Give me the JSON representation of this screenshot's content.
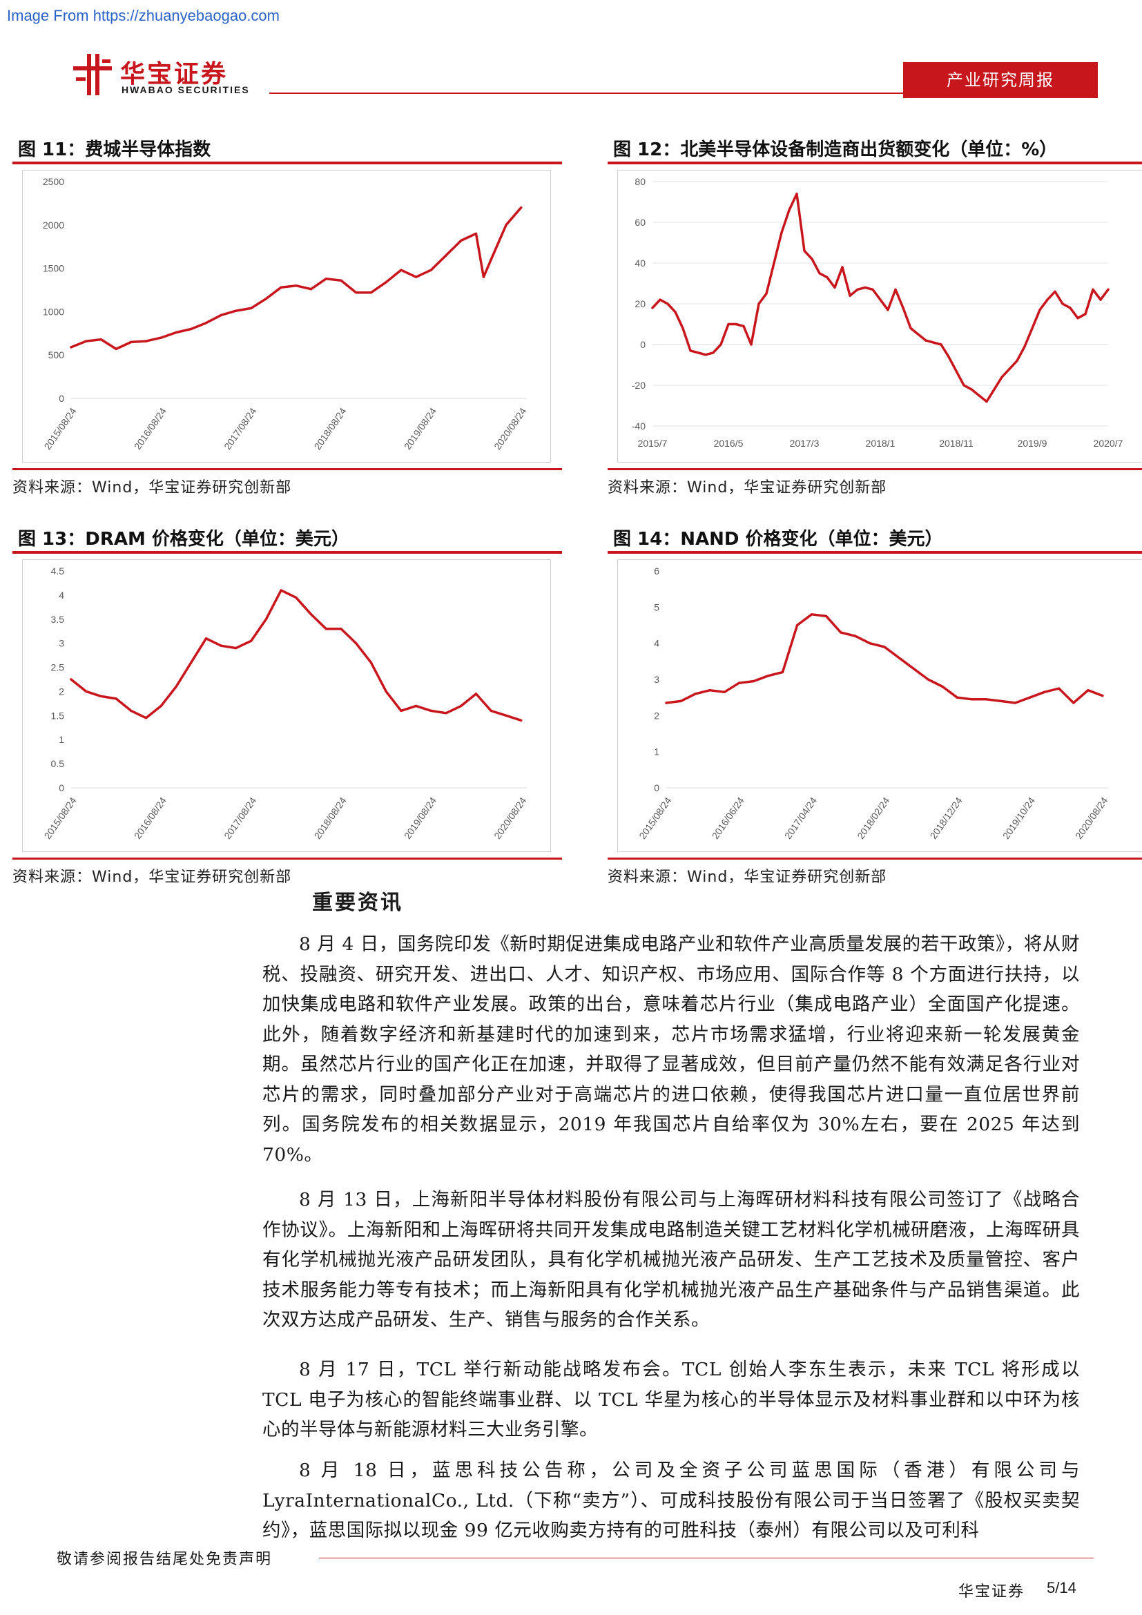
{
  "watermark": "Image From https://zhuanyebaogao.com",
  "header": {
    "logo_cn": "华宝证券",
    "logo_en": "HWABAO SECURITIES",
    "report_type": "产业研究周报",
    "colors": {
      "brand_red": "#c8161d"
    }
  },
  "figures": [
    {
      "title": "图 11：费城半导体指数",
      "source": "资料来源：Wind，华宝证券研究创新部"
    },
    {
      "title": "图 12：北美半导体设备制造商出货额变化（单位：%）",
      "source": "资料来源：Wind，华宝证券研究创新部"
    },
    {
      "title": "图 13：DRAM 价格变化（单位：美元）",
      "source": "资料来源：Wind，华宝证券研究创新部"
    },
    {
      "title": "图 14：NAND 价格变化（单位：美元）",
      "source": "资料来源：Wind，华宝证券研究创新部"
    }
  ],
  "chart_data": [
    {
      "type": "line",
      "title": "图 11：费城半导体指数",
      "color": "#c8161d",
      "x_ticks": [
        "2015/08/24",
        "2016/08/24",
        "2017/08/24",
        "2018/08/24",
        "2019/08/24",
        "2020/08/24"
      ],
      "ylim": [
        0,
        2500
      ],
      "y_ticks": [
        0,
        500,
        1000,
        1500,
        2000,
        2500
      ],
      "x": [
        "2015/08",
        "2015/10",
        "2015/12",
        "2016/02",
        "2016/04",
        "2016/06",
        "2016/08",
        "2016/10",
        "2016/12",
        "2017/02",
        "2017/04",
        "2017/06",
        "2017/08",
        "2017/10",
        "2017/12",
        "2018/02",
        "2018/04",
        "2018/06",
        "2018/08",
        "2018/10",
        "2018/12",
        "2019/02",
        "2019/04",
        "2019/06",
        "2019/08",
        "2019/10",
        "2019/12",
        "2020/02",
        "2020/03",
        "2020/04",
        "2020/06",
        "2020/08"
      ],
      "y": [
        590,
        660,
        680,
        570,
        650,
        660,
        700,
        760,
        800,
        870,
        960,
        1010,
        1040,
        1150,
        1280,
        1300,
        1260,
        1380,
        1360,
        1220,
        1220,
        1340,
        1480,
        1400,
        1480,
        1650,
        1820,
        1900,
        1400,
        1600,
        2000,
        2200
      ]
    },
    {
      "type": "line",
      "title": "图 12：北美半导体设备制造商出货额变化（单位：%）",
      "color": "#c8161d",
      "x_ticks": [
        "2015/7",
        "2016/5",
        "2017/3",
        "2018/1",
        "2018/11",
        "2019/9",
        "2020/7"
      ],
      "ylim": [
        -40,
        80
      ],
      "y_ticks": [
        -40,
        -20,
        0,
        20,
        40,
        60,
        80
      ],
      "x": [
        "2015/7",
        "2015/8",
        "2015/9",
        "2015/10",
        "2015/11",
        "2015/12",
        "2016/1",
        "2016/2",
        "2016/3",
        "2016/4",
        "2016/5",
        "2016/6",
        "2016/7",
        "2016/8",
        "2016/9",
        "2016/10",
        "2016/11",
        "2016/12",
        "2017/1",
        "2017/2",
        "2017/3",
        "2017/4",
        "2017/5",
        "2017/6",
        "2017/7",
        "2017/8",
        "2017/9",
        "2017/10",
        "2017/11",
        "2017/12",
        "2018/1",
        "2018/2",
        "2018/3",
        "2018/4",
        "2018/5",
        "2018/6",
        "2018/7",
        "2018/8",
        "2018/9",
        "2018/10",
        "2018/11",
        "2018/12",
        "2019/1",
        "2019/2",
        "2019/3",
        "2019/4",
        "2019/5",
        "2019/6",
        "2019/7",
        "2019/8",
        "2019/9",
        "2019/10",
        "2019/11",
        "2019/12",
        "2020/1",
        "2020/2",
        "2020/3",
        "2020/4",
        "2020/5",
        "2020/6",
        "2020/7"
      ],
      "y": [
        18,
        22,
        20,
        16,
        8,
        -3,
        -4,
        -5,
        -4,
        0,
        10,
        10,
        9,
        0,
        20,
        25,
        40,
        55,
        66,
        74,
        46,
        42,
        35,
        33,
        28,
        38,
        24,
        27,
        28,
        27,
        22,
        17,
        27,
        18,
        8,
        5,
        2,
        1,
        0,
        -6,
        -13,
        -20,
        -22,
        -25,
        -28,
        -22,
        -16,
        -12,
        -8,
        -1,
        8,
        17,
        22,
        26,
        20,
        18,
        13,
        15,
        27,
        22,
        27
      ]
    },
    {
      "type": "line",
      "title": "图 13：DRAM 价格变化（单位：美元）",
      "color": "#c8161d",
      "x_ticks": [
        "2015/08/24",
        "2016/08/24",
        "2017/08/24",
        "2018/08/24",
        "2019/08/24",
        "2020/08/24"
      ],
      "ylim": [
        0,
        4.5
      ],
      "y_ticks": [
        0,
        0.5,
        1,
        1.5,
        2,
        2.5,
        3,
        3.5,
        4,
        4.5
      ],
      "x": [
        "2015/08",
        "2015/10",
        "2015/12",
        "2016/02",
        "2016/04",
        "2016/06",
        "2016/08",
        "2016/10",
        "2016/12",
        "2017/02",
        "2017/04",
        "2017/06",
        "2017/08",
        "2017/10",
        "2017/12",
        "2018/02",
        "2018/04",
        "2018/06",
        "2018/08",
        "2018/10",
        "2018/12",
        "2019/02",
        "2019/04",
        "2019/06",
        "2019/08",
        "2019/10",
        "2019/12",
        "2020/02",
        "2020/04",
        "2020/06",
        "2020/08"
      ],
      "y": [
        2.25,
        2.0,
        1.9,
        1.85,
        1.6,
        1.45,
        1.7,
        2.1,
        2.6,
        3.1,
        2.95,
        2.9,
        3.05,
        3.5,
        4.1,
        3.95,
        3.6,
        3.3,
        3.3,
        3.0,
        2.6,
        2.0,
        1.6,
        1.7,
        1.6,
        1.55,
        1.7,
        1.95,
        1.6,
        1.5,
        1.4
      ]
    },
    {
      "type": "line",
      "title": "图 14：NAND 价格变化（单位：美元）",
      "color": "#c8161d",
      "x_ticks": [
        "2015/08/24",
        "2016/06/24",
        "2017/04/24",
        "2018/02/24",
        "2018/12/24",
        "2019/10/24",
        "2020/08/24"
      ],
      "ylim": [
        0,
        6
      ],
      "y_ticks": [
        0,
        1,
        2,
        3,
        4,
        5,
        6
      ],
      "x": [
        "2015/08",
        "2015/10",
        "2015/12",
        "2016/02",
        "2016/04",
        "2016/06",
        "2016/08",
        "2016/10",
        "2016/12",
        "2017/02",
        "2017/04",
        "2017/06",
        "2017/08",
        "2017/10",
        "2017/12",
        "2018/02",
        "2018/04",
        "2018/06",
        "2018/08",
        "2018/10",
        "2018/12",
        "2019/02",
        "2019/04",
        "2019/06",
        "2019/08",
        "2019/10",
        "2019/12",
        "2020/02",
        "2020/04",
        "2020/06",
        "2020/08"
      ],
      "y": [
        2.35,
        2.4,
        2.6,
        2.7,
        2.65,
        2.9,
        2.95,
        3.1,
        3.2,
        4.5,
        4.8,
        4.75,
        4.3,
        4.2,
        4.0,
        3.9,
        3.6,
        3.3,
        3.0,
        2.8,
        2.5,
        2.45,
        2.45,
        2.4,
        2.35,
        2.5,
        2.65,
        2.75,
        2.35,
        2.7,
        2.55
      ]
    }
  ],
  "section": {
    "title": "重要资讯"
  },
  "paragraphs": [
    "8 月 4 日，国务院印发《新时期促进集成电路产业和软件产业高质量发展的若干政策》，将从财税、投融资、研究开发、进出口、人才、知识产权、市场应用、国际合作等 8 个方面进行扶持，以加快集成电路和软件产业发展。政策的出台，意味着芯片行业（集成电路产业）全面国产化提速。此外，随着数字经济和新基建时代的加速到来，芯片市场需求猛增，行业将迎来新一轮发展黄金期。虽然芯片行业的国产化正在加速，并取得了显著成效，但目前产量仍然不能有效满足各行业对芯片的需求，同时叠加部分产业对于高端芯片的进口依赖，使得我国芯片进口量一直位居世界前列。国务院发布的相关数据显示，2019 年我国芯片自给率仅为 30%左右，要在 2025 年达到 70%。",
    "8 月 13 日，上海新阳半导体材料股份有限公司与上海晖研材料科技有限公司签订了《战略合作协议》。上海新阳和上海晖研将共同开发集成电路制造关键工艺材料化学机械研磨液，上海晖研具有化学机械抛光液产品研发团队，具有化学机械抛光液产品研发、生产工艺技术及质量管控、客户技术服务能力等专有技术；而上海新阳具有化学机械抛光液产品生产基础条件与产品销售渠道。此次双方达成产品研发、生产、销售与服务的合作关系。",
    "8 月 17 日，TCL 举行新动能战略发布会。TCL 创始人李东生表示，未来 TCL 将形成以 TCL 电子为核心的智能终端事业群、以 TCL 华星为核心的半导体显示及材料事业群和以中环为核心的半导体与新能源材料三大业务引擎。",
    "8 月 18 日，蓝思科技公告称，公司及全资子公司蓝思国际（香港）有限公司与 LyraInternationalCo., Ltd.（下称“卖方”）、可成科技股份有限公司于当日签署了《股权买卖契约》，蓝思国际拟以现金 99 亿元收购卖方持有的可胜科技（泰州）有限公司以及可利科"
  ],
  "footer": {
    "disclaimer": "敬请参阅报告结尾处免责声明",
    "company": "华宝证券",
    "page": "5/14"
  }
}
